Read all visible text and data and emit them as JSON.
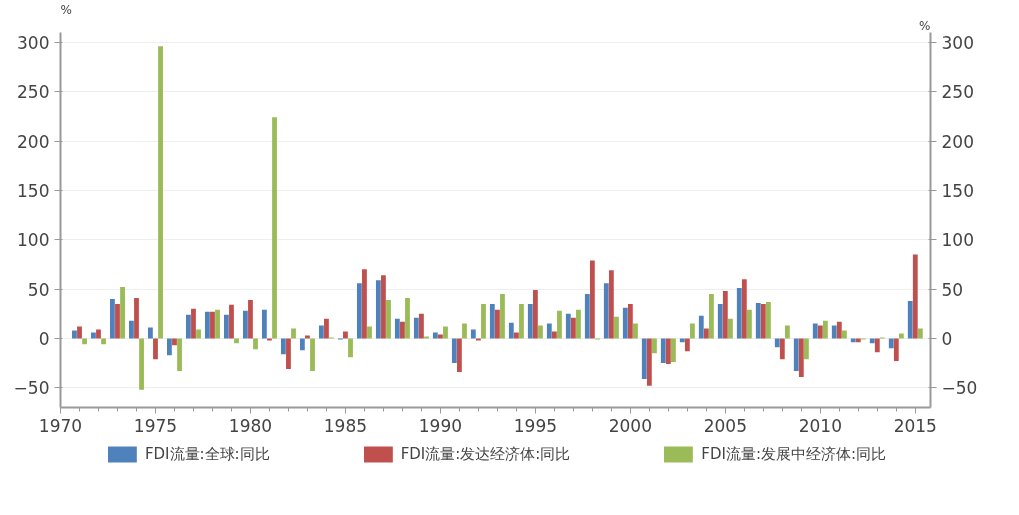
{
  "chart_data": {
    "type": "bar",
    "ylabel": "%",
    "y2label": "%",
    "x": [
      1971,
      1972,
      1973,
      1974,
      1975,
      1976,
      1977,
      1978,
      1979,
      1980,
      1981,
      1982,
      1983,
      1984,
      1985,
      1986,
      1987,
      1988,
      1989,
      1990,
      1991,
      1992,
      1993,
      1994,
      1995,
      1996,
      1997,
      1998,
      1999,
      2000,
      2001,
      2002,
      2003,
      2004,
      2005,
      2006,
      2007,
      2008,
      2009,
      2010,
      2011,
      2012,
      2013,
      2014,
      2015
    ],
    "series": [
      {
        "name": "FDI流量:全球:同比",
        "color": "#4f81bd",
        "values": [
          8,
          6,
          40,
          18,
          11,
          -17,
          24,
          27,
          24,
          28,
          29,
          -16,
          -12,
          13,
          -1,
          56,
          59,
          20,
          21,
          6,
          -25,
          9,
          35,
          16,
          35,
          15,
          25,
          45,
          56,
          31,
          -41,
          -25,
          -4,
          23,
          35,
          51,
          36,
          -9,
          -33,
          15,
          13,
          -4,
          -5,
          -10,
          38
        ]
      },
      {
        "name": "FDI流量:发达经济体:同比",
        "color": "#c0504d",
        "values": [
          12,
          9,
          35,
          41,
          -21,
          -7,
          30,
          27,
          34,
          39,
          -2,
          -31,
          3,
          20,
          7,
          70,
          64,
          17,
          25,
          4,
          -34,
          -2,
          29,
          6,
          49,
          7,
          21,
          79,
          69,
          35,
          -48,
          -26,
          -13,
          10,
          48,
          60,
          35,
          -21,
          -39,
          13,
          17,
          -4,
          -14,
          -23,
          85
        ]
      },
      {
        "name": "FDI流量:发展中经济体:同比",
        "color": "#9bbb59",
        "values": [
          -6,
          -6,
          52,
          -52,
          296,
          -33,
          9,
          29,
          -5,
          -11,
          224,
          10,
          -33,
          1,
          -19,
          12,
          39,
          41,
          2,
          12,
          15,
          35,
          45,
          35,
          13,
          28,
          29,
          -1,
          22,
          15,
          -15,
          -24,
          15,
          45,
          20,
          29,
          37,
          13,
          -21,
          18,
          8,
          -1,
          1,
          5,
          10
        ]
      }
    ],
    "xlim": [
      1970,
      2015.8
    ],
    "xticks": [
      1970,
      1975,
      1980,
      1985,
      1990,
      1995,
      2000,
      2005,
      2010,
      2015
    ],
    "ylim": [
      -70,
      310
    ],
    "yticks": [
      -50,
      0,
      50,
      100,
      150,
      200,
      250,
      300
    ],
    "y2lim": [
      -70,
      310
    ],
    "y2ticks": [
      -50,
      0,
      50,
      100,
      150,
      200,
      250,
      300
    ],
    "grid": "y",
    "legend": "bottom"
  }
}
